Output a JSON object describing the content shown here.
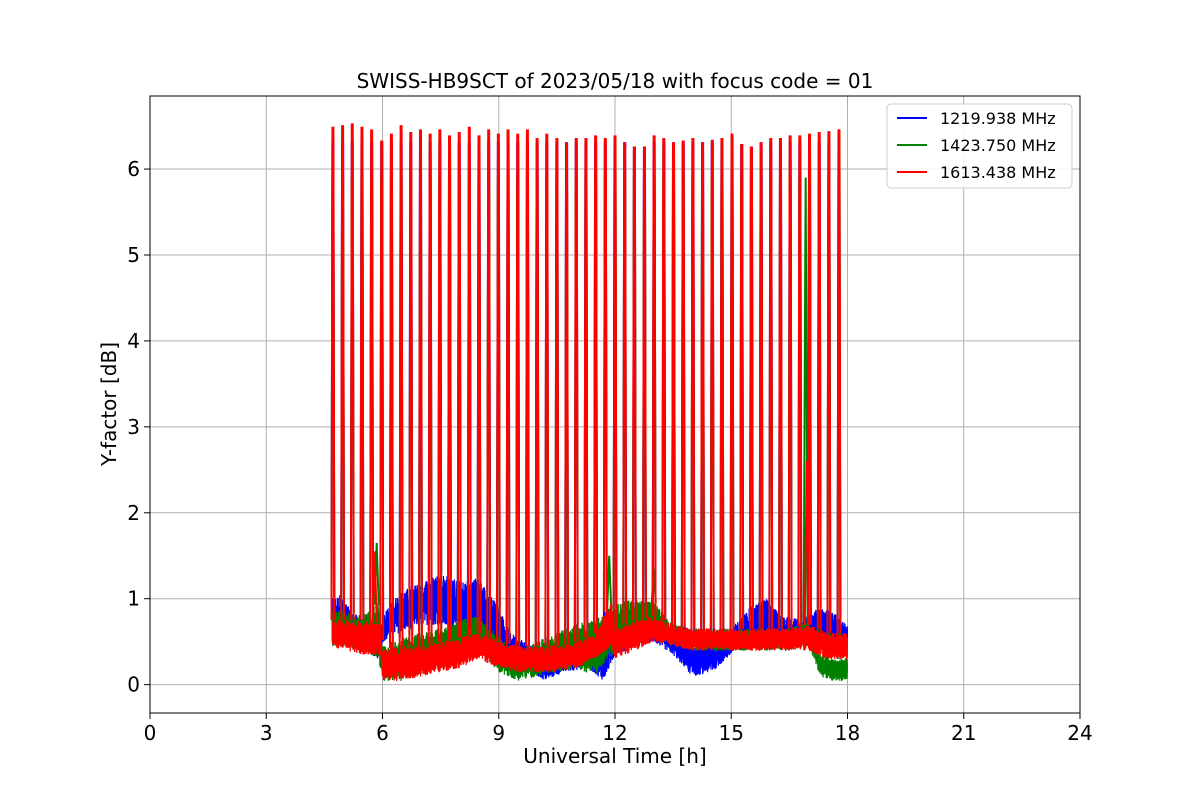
{
  "chart_data": {
    "type": "line",
    "title": "SWISS-HB9SCT of 2023/05/18 with focus code = 01",
    "xlabel": "Universal Time [h]",
    "ylabel": "Y-factor [dB]",
    "xlim": [
      0,
      24
    ],
    "ylim": [
      -0.33,
      6.85
    ],
    "xticks": [
      0,
      3,
      6,
      9,
      12,
      15,
      18,
      21,
      24
    ],
    "yticks": [
      0,
      1,
      2,
      3,
      4,
      5,
      6
    ],
    "grid": true,
    "legend_position": "top-right",
    "data_range": [
      4.7,
      18.0
    ],
    "peak_times": [
      4.72,
      4.97,
      5.22,
      5.47,
      5.72,
      5.98,
      6.23,
      6.48,
      6.73,
      6.98,
      7.23,
      7.48,
      7.73,
      7.98,
      8.24,
      8.49,
      8.74,
      8.99,
      9.24,
      9.49,
      9.74,
      9.99,
      10.24,
      10.5,
      10.75,
      11.0,
      11.25,
      11.5,
      11.75,
      12.0,
      12.25,
      12.5,
      12.76,
      13.01,
      13.26,
      13.51,
      13.76,
      14.01,
      14.26,
      14.51,
      14.76,
      15.02,
      15.27,
      15.52,
      15.77,
      16.02,
      16.27,
      16.52,
      16.77,
      17.02,
      17.27,
      17.52,
      17.78
    ],
    "peak_values": [
      6.48,
      6.5,
      6.52,
      6.48,
      6.45,
      6.32,
      6.4,
      6.5,
      6.42,
      6.45,
      6.4,
      6.45,
      6.38,
      6.42,
      6.48,
      6.38,
      6.45,
      6.4,
      6.45,
      6.4,
      6.45,
      6.35,
      6.4,
      6.35,
      6.3,
      6.35,
      6.35,
      6.38,
      6.35,
      6.38,
      6.3,
      6.25,
      6.25,
      6.38,
      6.35,
      6.3,
      6.32,
      6.35,
      6.3,
      6.33,
      6.35,
      6.4,
      6.28,
      6.25,
      6.3,
      6.35,
      6.35,
      6.38,
      6.38,
      6.4,
      6.42,
      6.43,
      6.45
    ],
    "series": [
      {
        "name": "1219.938 MHz",
        "color": "#0000ff",
        "peak": 6.3,
        "baseline": {
          "t": [
            4.7,
            4.9,
            5.2,
            5.5,
            5.9,
            6.0,
            6.4,
            7.0,
            7.5,
            8.0,
            8.5,
            9.0,
            9.3,
            9.7,
            10.2,
            10.7,
            11.3,
            11.7,
            12.0,
            12.5,
            13.0,
            13.5,
            14.0,
            14.5,
            15.0,
            15.5,
            15.9,
            16.3,
            16.8,
            17.3,
            17.6,
            18.0
          ],
          "lo": [
            0.5,
            0.5,
            0.45,
            0.4,
            0.3,
            0.5,
            0.6,
            0.7,
            0.7,
            0.55,
            0.5,
            0.35,
            0.25,
            0.15,
            0.05,
            0.15,
            0.2,
            0.05,
            0.35,
            0.45,
            0.5,
            0.35,
            0.1,
            0.15,
            0.35,
            0.45,
            0.55,
            0.45,
            0.45,
            0.55,
            0.4,
            0.35
          ],
          "hi": [
            1.0,
            1.05,
            0.85,
            0.75,
            0.7,
            0.8,
            1.05,
            1.2,
            1.3,
            1.2,
            1.25,
            0.9,
            0.6,
            0.5,
            0.35,
            0.45,
            0.5,
            0.4,
            0.55,
            0.6,
            0.75,
            0.65,
            0.45,
            0.5,
            0.65,
            0.9,
            1.0,
            0.8,
            0.75,
            0.9,
            0.85,
            0.7
          ]
        }
      },
      {
        "name": "1423.750 MHz",
        "color": "#008000",
        "peak": 5.9,
        "baseline": {
          "t": [
            4.7,
            5.0,
            5.5,
            5.9,
            6.0,
            6.5,
            7.0,
            7.5,
            8.0,
            8.5,
            9.0,
            9.5,
            10.0,
            10.5,
            11.0,
            11.5,
            12.0,
            12.5,
            13.0,
            13.5,
            14.0,
            14.5,
            15.0,
            15.5,
            16.0,
            16.5,
            17.0,
            17.3,
            17.6,
            18.0
          ],
          "lo": [
            0.45,
            0.45,
            0.4,
            0.3,
            0.05,
            0.05,
            0.15,
            0.2,
            0.3,
            0.4,
            0.15,
            0.05,
            0.1,
            0.15,
            0.2,
            0.1,
            0.35,
            0.5,
            0.55,
            0.45,
            0.4,
            0.4,
            0.4,
            0.4,
            0.4,
            0.4,
            0.45,
            0.1,
            0.05,
            0.05
          ],
          "hi": [
            0.9,
            0.85,
            0.8,
            0.95,
            0.45,
            0.55,
            0.6,
            0.65,
            0.75,
            0.8,
            0.55,
            0.4,
            0.5,
            0.6,
            0.7,
            0.75,
            0.95,
            1.0,
            0.95,
            0.7,
            0.65,
            0.65,
            0.65,
            0.65,
            0.65,
            0.65,
            0.75,
            0.35,
            0.3,
            0.3
          ]
        },
        "spikes": [
          {
            "t": 5.85,
            "y": 1.65
          },
          {
            "t": 11.85,
            "y": 1.5
          },
          {
            "t": 13.0,
            "y": 1.35
          },
          {
            "t": 16.92,
            "y": 5.9
          }
        ]
      },
      {
        "name": "1613.438 MHz",
        "color": "#ff0000",
        "peak": 6.45,
        "baseline": {
          "t": [
            4.7,
            5.0,
            5.5,
            5.95,
            6.0,
            6.5,
            7.0,
            7.5,
            8.0,
            8.5,
            9.0,
            9.5,
            10.0,
            10.5,
            11.0,
            11.5,
            11.9,
            12.0,
            12.5,
            13.0,
            13.5,
            14.0,
            14.5,
            15.0,
            15.5,
            16.0,
            16.5,
            17.0,
            17.5,
            18.0
          ],
          "lo": [
            0.45,
            0.4,
            0.35,
            0.35,
            0.05,
            0.05,
            0.1,
            0.15,
            0.2,
            0.3,
            0.2,
            0.15,
            0.15,
            0.15,
            0.2,
            0.3,
            0.45,
            0.3,
            0.4,
            0.5,
            0.45,
            0.4,
            0.4,
            0.4,
            0.4,
            0.4,
            0.4,
            0.4,
            0.3,
            0.3
          ],
          "hi": [
            0.75,
            0.75,
            0.75,
            0.7,
            0.4,
            0.45,
            0.45,
            0.5,
            0.55,
            0.6,
            0.5,
            0.45,
            0.45,
            0.45,
            0.5,
            0.6,
            1.0,
            0.65,
            0.75,
            0.8,
            0.7,
            0.65,
            0.65,
            0.65,
            0.65,
            0.65,
            0.65,
            0.7,
            0.6,
            0.6
          ]
        },
        "spikes": [
          {
            "t": 5.8,
            "y": 1.55
          },
          {
            "t": 16.95,
            "y": 2.6
          }
        ]
      }
    ]
  }
}
